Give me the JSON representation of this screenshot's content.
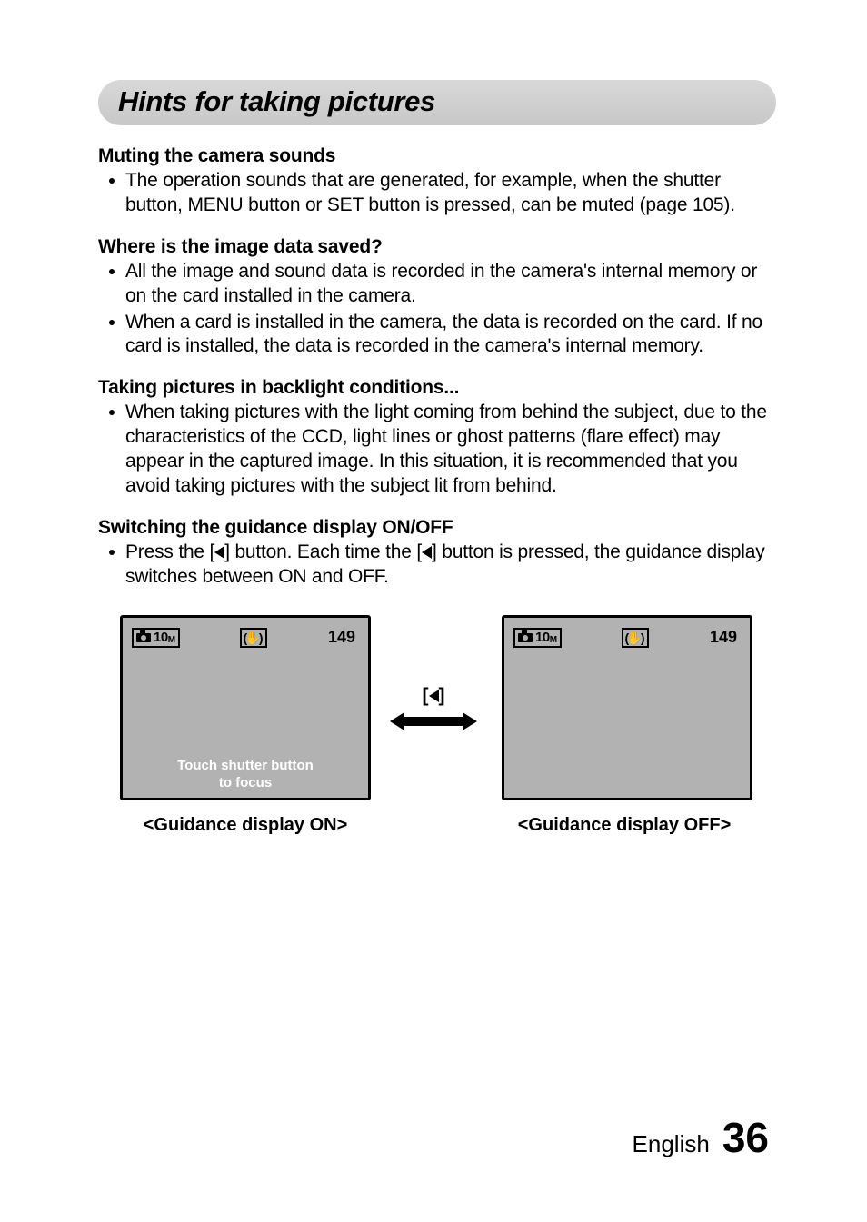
{
  "title": "Hints for taking pictures",
  "sections": {
    "muting": {
      "heading": "Muting the camera sounds",
      "b1": "The operation sounds that are generated, for example, when the shutter button, MENU button or SET button is pressed, can be muted (page 105)."
    },
    "where": {
      "heading": "Where is the image data saved?",
      "b1": "All the image and sound data is recorded in the camera's internal memory or on the card installed in the camera.",
      "b2": "When a card is installed in the camera, the data is recorded on the card. If no card is installed, the data is recorded in the camera's internal memory."
    },
    "backlight": {
      "heading": "Taking pictures in backlight conditions...",
      "b1": "When taking pictures with the light coming from behind the subject, due to the characteristics of the CCD, light lines or ghost patterns (flare effect) may appear in the captured image. In this situation, it is recommended that you avoid taking pictures with the subject lit from behind."
    },
    "guidance": {
      "heading": "Switching the guidance display ON/OFF",
      "b1_pre": "Press the [",
      "b1_mid": "] button. Each time the [",
      "b1_post": "] button is pressed, the guidance display switches between ON and OFF."
    }
  },
  "lcd": {
    "resolution_value": "10",
    "resolution_suffix": "M",
    "shots_remaining": "149",
    "guide_line1": "Touch shutter button",
    "guide_line2": "to focus",
    "screen_bg": "#b2b2b2",
    "border_color": "#000000",
    "guide_text_color": "#ffffff"
  },
  "arrow_label_open": "[",
  "arrow_label_close": "]",
  "caption_on": "<Guidance display ON>",
  "caption_off": "<Guidance display OFF>",
  "footer": {
    "language": "English",
    "page_number": "36"
  }
}
